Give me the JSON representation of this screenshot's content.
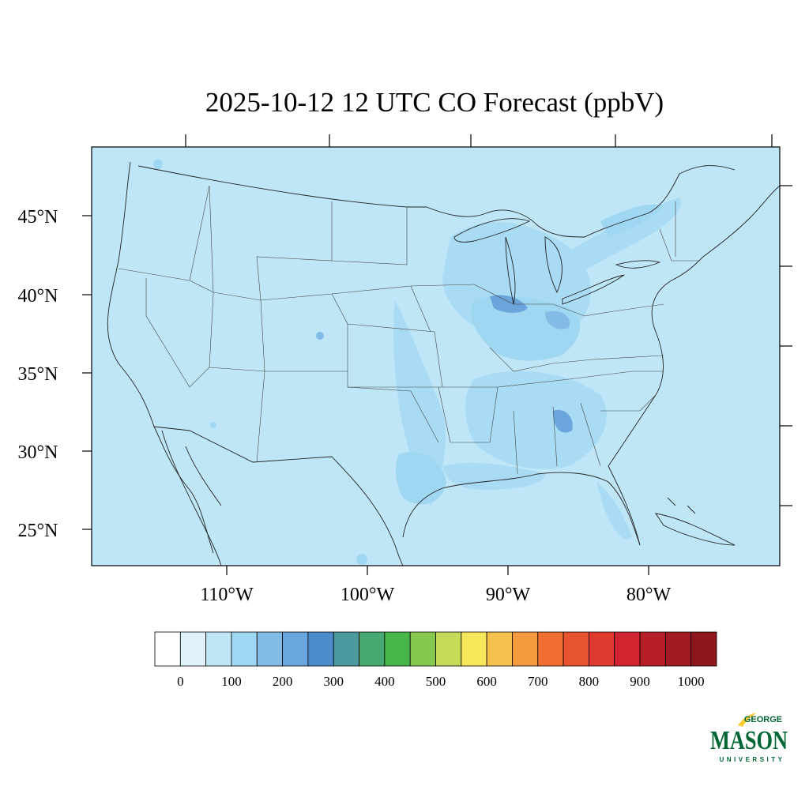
{
  "map": {
    "title": "2025-10-12 12 UTC CO Forecast (ppbV)",
    "latitude_labels": [
      "45°N",
      "40°N",
      "35°N",
      "30°N",
      "25°N"
    ],
    "longitude_labels": [
      "110°W",
      "100°W",
      "90°W",
      "80°W"
    ],
    "background_color": "#bfe6f7"
  },
  "colorbar": {
    "tick_labels": [
      "0",
      "100",
      "200",
      "300",
      "400",
      "500",
      "600",
      "700",
      "800",
      "900",
      "1000"
    ],
    "colors": [
      "#ffffff",
      "#dff2fb",
      "#bfe6f7",
      "#9fd6f2",
      "#82bce6",
      "#68a6dc",
      "#4d8ccb",
      "#4a9aa0",
      "#47a872",
      "#46b64a",
      "#86c850",
      "#c6da5a",
      "#f6e65a",
      "#f6c04c",
      "#f59a3e",
      "#f06e30",
      "#e85430",
      "#e03a2e",
      "#d12430",
      "#b81e28",
      "#a31b22",
      "#8f161c"
    ]
  },
  "logo": {
    "line1": "GEORGE",
    "line2": "MASON",
    "line3": "UNIVERSITY",
    "brand_green": "#006633",
    "brand_gold": "#ffcc33"
  }
}
